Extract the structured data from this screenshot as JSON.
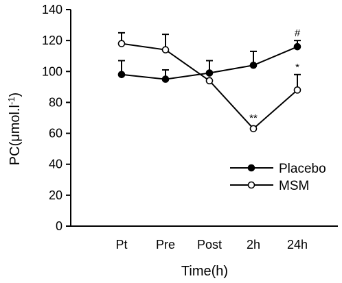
{
  "chart_data": {
    "type": "line",
    "xlabel": "Time(h)",
    "ylabel_main": "PC(μmol.l",
    "ylabel_sup": "-1",
    "ylabel_close": ")",
    "categories": [
      "Pt",
      "Pre",
      "Post",
      "2h",
      "24h"
    ],
    "ylim": [
      0,
      140
    ],
    "yticks": [
      0,
      20,
      40,
      60,
      80,
      100,
      120,
      140
    ],
    "grid": false,
    "legend_position": "right",
    "series": [
      {
        "name": "Placebo",
        "marker": "filled-circle",
        "values": [
          98,
          95,
          99,
          104,
          116
        ],
        "error_plus": [
          9,
          6,
          8,
          9,
          4
        ],
        "annotations": [
          "",
          "",
          "",
          "",
          "#"
        ]
      },
      {
        "name": "MSM",
        "marker": "open-circle",
        "values": [
          118,
          114,
          94,
          63,
          88
        ],
        "error_plus": [
          7,
          10,
          0,
          0,
          10
        ],
        "annotations": [
          "",
          "",
          "",
          "**",
          "*"
        ]
      }
    ]
  }
}
